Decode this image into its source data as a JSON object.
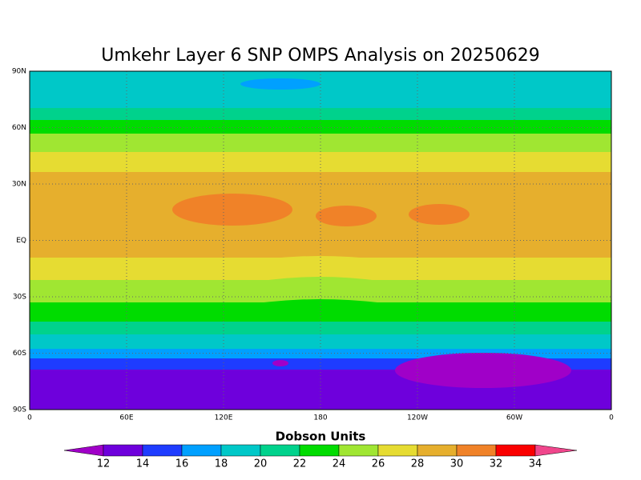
{
  "title": "Umkehr Layer 6 SNP OMPS Analysis on 20250629",
  "map": {
    "lat_ticks": [
      "90N",
      "60N",
      "30N",
      "EQ",
      "30S",
      "60S",
      "90S"
    ],
    "lon_ticks": [
      "0",
      "60E",
      "120E",
      "180",
      "120W",
      "60W",
      "0"
    ]
  },
  "colorbar": {
    "label": "Dobson Units",
    "levels": [
      12,
      14,
      16,
      18,
      20,
      22,
      24,
      26,
      28,
      30,
      32,
      34
    ],
    "colors": [
      "#a000c8",
      "#6e00dc",
      "#1e3cff",
      "#00a0ff",
      "#00c8c8",
      "#00d28c",
      "#00dc00",
      "#a0e632",
      "#e6dc32",
      "#e6af2d",
      "#f08228",
      "#fa0000",
      "#f0468c"
    ]
  }
}
